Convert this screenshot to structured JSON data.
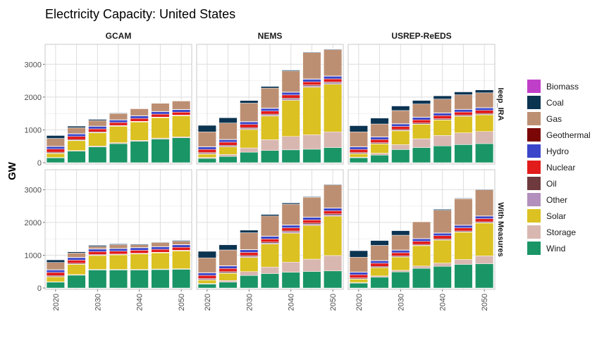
{
  "chart_data": {
    "type": "bar",
    "stacked": true,
    "title": "Electricity Capacity: United States",
    "ylabel": "GW",
    "xlabel": "",
    "ylim": [
      0,
      3500
    ],
    "yticks": [
      0,
      1000,
      2000,
      3000
    ],
    "x": [
      2020,
      2025,
      2030,
      2035,
      2040,
      2045,
      2050
    ],
    "xticks": [
      2020,
      2030,
      2040,
      2050
    ],
    "grid": true,
    "legend_position": "right",
    "facet_columns": [
      "GCAM",
      "NEMS",
      "USREP-ReEDS"
    ],
    "facet_rows": [
      "Ieep_IRA",
      "With Measures"
    ],
    "stack_order_bottom_to_top": [
      "Wind",
      "Storage",
      "Solar",
      "Other",
      "Oil",
      "Nuclear",
      "Hydro",
      "Geothermal",
      "Gas",
      "Coal",
      "Biomass"
    ],
    "legend": [
      {
        "name": "Biomass",
        "color": "#c03fc8"
      },
      {
        "name": "Coal",
        "color": "#0b3451"
      },
      {
        "name": "Gas",
        "color": "#bd8f72"
      },
      {
        "name": "Geothermal",
        "color": "#7b0606"
      },
      {
        "name": "Hydro",
        "color": "#3a45c9"
      },
      {
        "name": "Nuclear",
        "color": "#e21b1b"
      },
      {
        "name": "Oil",
        "color": "#6e3a3e"
      },
      {
        "name": "Other",
        "color": "#b28fbc"
      },
      {
        "name": "Solar",
        "color": "#dbc121"
      },
      {
        "name": "Storage",
        "color": "#d9b7b1"
      },
      {
        "name": "Wind",
        "color": "#1a9566"
      }
    ],
    "panels": [
      {
        "row": "Ieep_IRA",
        "column": "GCAM",
        "series": [
          {
            "name": "Wind",
            "values": [
              150,
              350,
              480,
              580,
              650,
              720,
              760
            ]
          },
          {
            "name": "Storage",
            "values": [
              10,
              20,
              30,
              30,
              30,
              30,
              30
            ]
          },
          {
            "name": "Solar",
            "values": [
              120,
              300,
              400,
              500,
              560,
              620,
              640
            ]
          },
          {
            "name": "Other",
            "values": [
              10,
              10,
              10,
              10,
              10,
              10,
              10
            ]
          },
          {
            "name": "Oil",
            "values": [
              30,
              25,
              20,
              15,
              10,
              10,
              10
            ]
          },
          {
            "name": "Nuclear",
            "values": [
              95,
              95,
              90,
              90,
              90,
              90,
              90
            ]
          },
          {
            "name": "Hydro",
            "values": [
              80,
              80,
              80,
              80,
              80,
              80,
              80
            ]
          },
          {
            "name": "Geothermal",
            "values": [
              5,
              5,
              5,
              5,
              5,
              5,
              5
            ]
          },
          {
            "name": "Gas",
            "values": [
              240,
              180,
              170,
              190,
              210,
              250,
              260
            ]
          },
          {
            "name": "Coal",
            "values": [
              90,
              50,
              40,
              20,
              10,
              5,
              5
            ]
          },
          {
            "name": "Biomass",
            "values": [
              10,
              10,
              5,
              5,
              5,
              5,
              5
            ]
          }
        ]
      },
      {
        "row": "Ieep_IRA",
        "column": "NEMS",
        "series": [
          {
            "name": "Wind",
            "values": [
              130,
              190,
              320,
              370,
              390,
              410,
              460
            ]
          },
          {
            "name": "Storage",
            "values": [
              30,
              60,
              130,
              330,
              410,
              440,
              480
            ]
          },
          {
            "name": "Solar",
            "values": [
              100,
              230,
              560,
              720,
              1100,
              1450,
              1450
            ]
          },
          {
            "name": "Other",
            "values": [
              20,
              20,
              30,
              30,
              40,
              40,
              40
            ]
          },
          {
            "name": "Oil",
            "values": [
              30,
              30,
              30,
              30,
              30,
              30,
              30
            ]
          },
          {
            "name": "Nuclear",
            "values": [
              95,
              95,
              95,
              95,
              95,
              95,
              95
            ]
          },
          {
            "name": "Hydro",
            "values": [
              80,
              80,
              80,
              80,
              80,
              80,
              80
            ]
          },
          {
            "name": "Geothermal",
            "values": [
              5,
              5,
              10,
              10,
              10,
              10,
              10
            ]
          },
          {
            "name": "Gas",
            "values": [
              450,
              500,
              560,
              610,
              640,
              800,
              800
            ]
          },
          {
            "name": "Coal",
            "values": [
              200,
              160,
              80,
              50,
              30,
              20,
              20
            ]
          },
          {
            "name": "Biomass",
            "values": [
              10,
              10,
              10,
              10,
              10,
              10,
              10
            ]
          }
        ]
      },
      {
        "row": "Ieep_IRA",
        "column": "USREP-ReEDS",
        "series": [
          {
            "name": "Wind",
            "values": [
              150,
              230,
              400,
              460,
              510,
              550,
              580
            ]
          },
          {
            "name": "Storage",
            "values": [
              20,
              60,
              150,
              270,
              320,
              360,
              370
            ]
          },
          {
            "name": "Solar",
            "values": [
              100,
              280,
              420,
              440,
              470,
              500,
              510
            ]
          },
          {
            "name": "Other",
            "values": [
              10,
              10,
              10,
              10,
              10,
              10,
              10
            ]
          },
          {
            "name": "Oil",
            "values": [
              30,
              30,
              30,
              30,
              30,
              30,
              30
            ]
          },
          {
            "name": "Nuclear",
            "values": [
              95,
              95,
              95,
              95,
              95,
              95,
              95
            ]
          },
          {
            "name": "Hydro",
            "values": [
              80,
              80,
              80,
              80,
              80,
              80,
              80
            ]
          },
          {
            "name": "Geothermal",
            "values": [
              5,
              5,
              5,
              5,
              5,
              5,
              5
            ]
          },
          {
            "name": "Gas",
            "values": [
              450,
              390,
              400,
              400,
              420,
              440,
              450
            ]
          },
          {
            "name": "Coal",
            "values": [
              190,
              180,
              140,
              110,
              100,
              90,
              90
            ]
          },
          {
            "name": "Biomass",
            "values": [
              10,
              10,
              10,
              10,
              10,
              10,
              10
            ]
          }
        ]
      },
      {
        "row": "With Measures",
        "column": "GCAM",
        "series": [
          {
            "name": "Wind",
            "values": [
              180,
              390,
              550,
              550,
              550,
              560,
              570
            ]
          },
          {
            "name": "Storage",
            "values": [
              10,
              20,
              20,
              20,
              20,
              20,
              20
            ]
          },
          {
            "name": "Solar",
            "values": [
              150,
              310,
              420,
              440,
              470,
              490,
              540
            ]
          },
          {
            "name": "Other",
            "values": [
              10,
              10,
              10,
              10,
              10,
              10,
              10
            ]
          },
          {
            "name": "Oil",
            "values": [
              30,
              25,
              20,
              15,
              10,
              10,
              10
            ]
          },
          {
            "name": "Nuclear",
            "values": [
              95,
              95,
              90,
              90,
              90,
              90,
              90
            ]
          },
          {
            "name": "Hydro",
            "values": [
              80,
              80,
              80,
              80,
              80,
              80,
              80
            ]
          },
          {
            "name": "Geothermal",
            "values": [
              5,
              5,
              5,
              5,
              5,
              5,
              5
            ]
          },
          {
            "name": "Gas",
            "values": [
              220,
              130,
              70,
              110,
              80,
              120,
              100
            ]
          },
          {
            "name": "Coal",
            "values": [
              80,
              40,
              40,
              30,
              30,
              20,
              30
            ]
          },
          {
            "name": "Biomass",
            "values": [
              10,
              10,
              5,
              5,
              5,
              5,
              5
            ]
          }
        ]
      },
      {
        "row": "With Measures",
        "column": "NEMS",
        "series": [
          {
            "name": "Wind",
            "values": [
              120,
              180,
              380,
              440,
              480,
              500,
              520
            ]
          },
          {
            "name": "Storage",
            "values": [
              20,
              50,
              120,
              200,
              310,
              380,
              470
            ]
          },
          {
            "name": "Solar",
            "values": [
              100,
              220,
              430,
              700,
              880,
              1030,
              1200
            ]
          },
          {
            "name": "Other",
            "values": [
              20,
              20,
              30,
              30,
              40,
              40,
              40
            ]
          },
          {
            "name": "Oil",
            "values": [
              30,
              30,
              30,
              30,
              30,
              30,
              30
            ]
          },
          {
            "name": "Nuclear",
            "values": [
              95,
              95,
              95,
              95,
              95,
              95,
              95
            ]
          },
          {
            "name": "Hydro",
            "values": [
              80,
              80,
              80,
              80,
              80,
              80,
              80
            ]
          },
          {
            "name": "Geothermal",
            "values": [
              5,
              5,
              10,
              10,
              10,
              10,
              10
            ]
          },
          {
            "name": "Gas",
            "values": [
              450,
              480,
              510,
              610,
              630,
              600,
              700
            ]
          },
          {
            "name": "Coal",
            "values": [
              200,
              160,
              80,
              50,
              40,
              20,
              20
            ]
          },
          {
            "name": "Biomass",
            "values": [
              10,
              10,
              10,
              10,
              10,
              10,
              10
            ]
          }
        ]
      },
      {
        "row": "With Measures",
        "column": "USREP-ReEDS",
        "series": [
          {
            "name": "Wind",
            "values": [
              150,
              330,
              490,
              600,
              660,
              720,
              740
            ]
          },
          {
            "name": "Storage",
            "values": [
              20,
              40,
              50,
              70,
              100,
              150,
              240
            ]
          },
          {
            "name": "Solar",
            "values": [
              100,
              250,
              400,
              620,
              700,
              830,
              1000
            ]
          },
          {
            "name": "Other",
            "values": [
              10,
              10,
              10,
              10,
              10,
              10,
              10
            ]
          },
          {
            "name": "Oil",
            "values": [
              30,
              30,
              30,
              30,
              30,
              30,
              30
            ]
          },
          {
            "name": "Nuclear",
            "values": [
              95,
              95,
              95,
              95,
              95,
              95,
              95
            ]
          },
          {
            "name": "Hydro",
            "values": [
              80,
              80,
              80,
              80,
              80,
              80,
              80
            ]
          },
          {
            "name": "Geothermal",
            "values": [
              5,
              5,
              5,
              5,
              5,
              5,
              5
            ]
          },
          {
            "name": "Gas",
            "values": [
              450,
              460,
              450,
              510,
              690,
              800,
              790
            ]
          },
          {
            "name": "Coal",
            "values": [
              200,
              150,
              140,
              0,
              30,
              20,
              20
            ]
          },
          {
            "name": "Biomass",
            "values": [
              10,
              10,
              10,
              10,
              10,
              10,
              10
            ]
          }
        ]
      }
    ]
  }
}
